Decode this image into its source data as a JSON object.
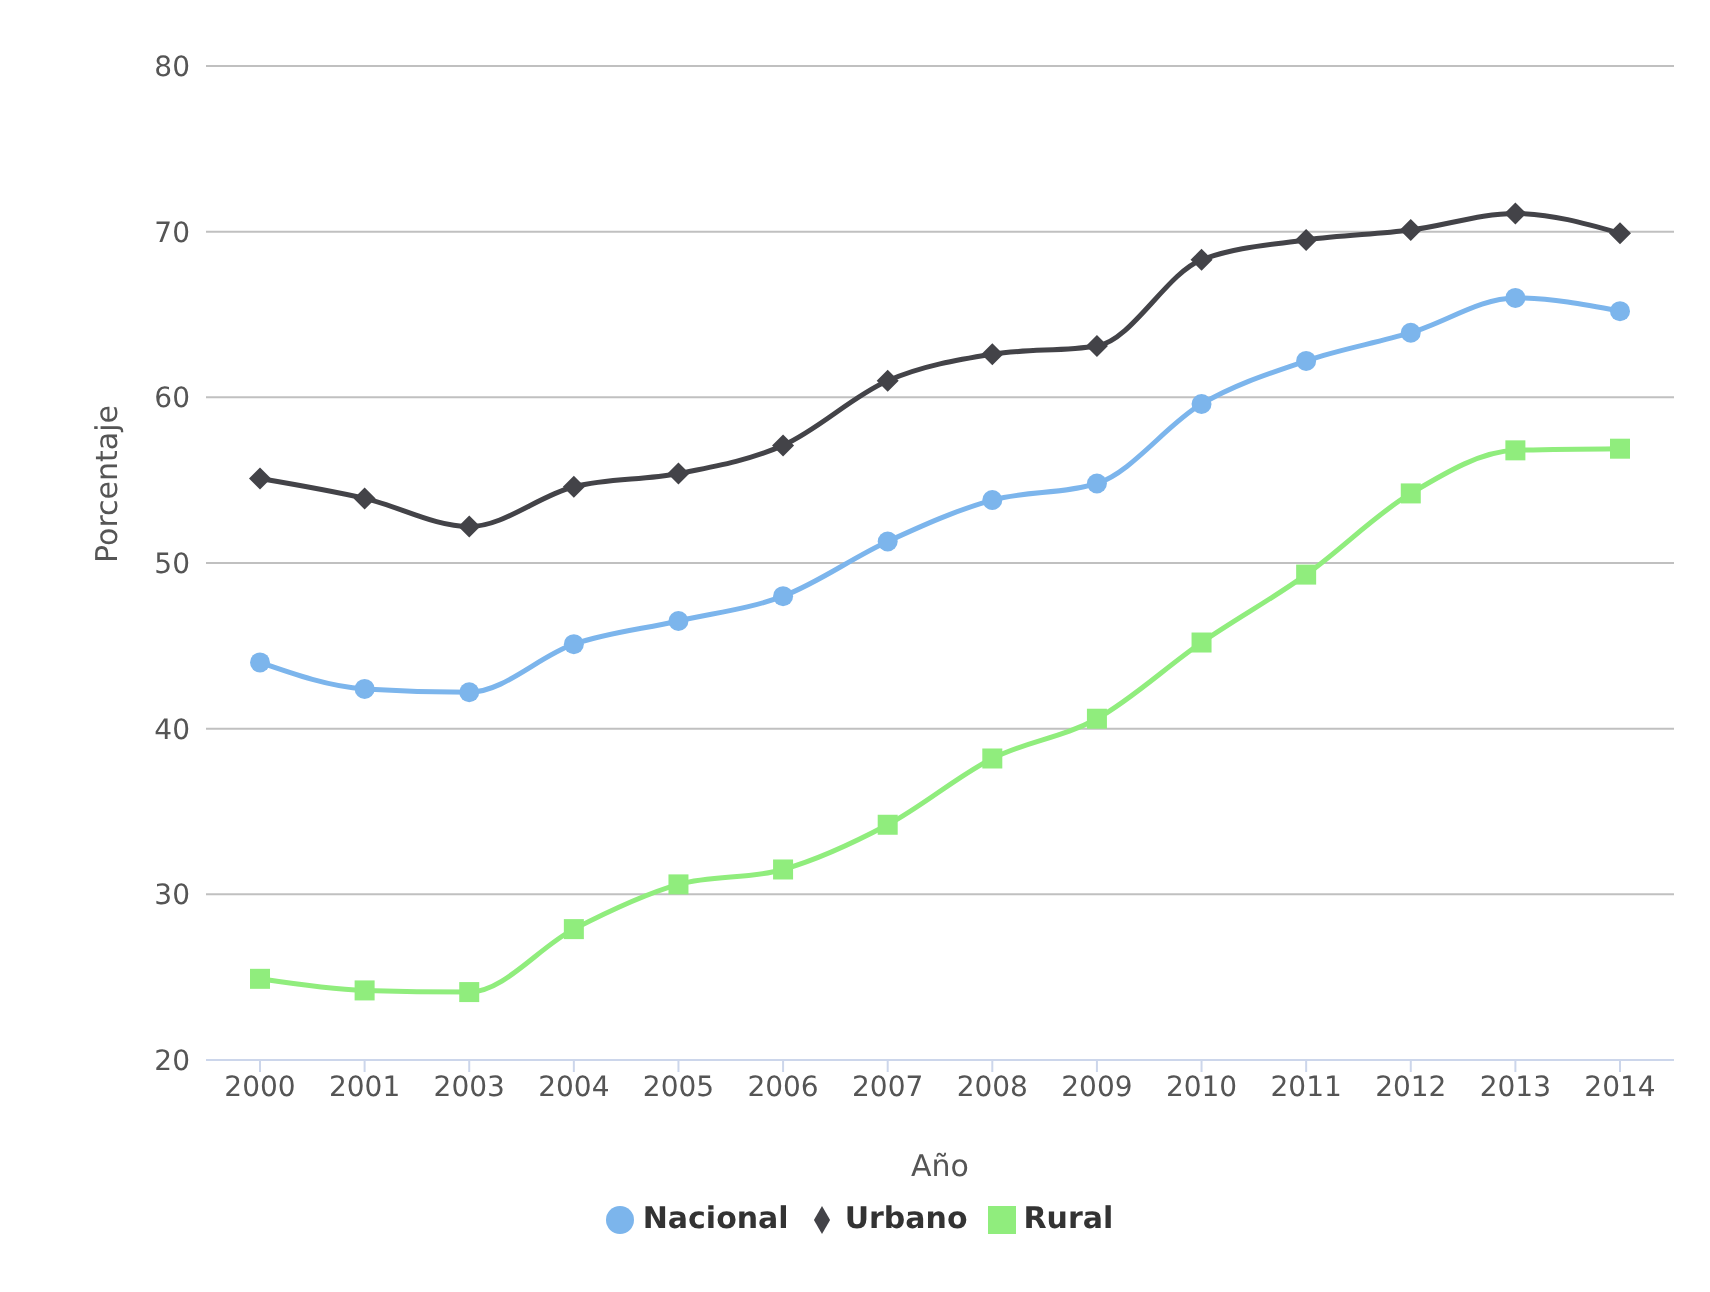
{
  "chart_data": {
    "type": "line",
    "xlabel": "Año",
    "ylabel": "Porcentaje",
    "categories": [
      "2000",
      "2001",
      "2003",
      "2004",
      "2005",
      "2006",
      "2007",
      "2008",
      "2009",
      "2010",
      "2011",
      "2012",
      "2013",
      "2014"
    ],
    "series": [
      {
        "name": "Nacional",
        "color": "#7cb5ec",
        "marker": "circle",
        "values": [
          44.0,
          42.4,
          42.2,
          45.1,
          46.5,
          48.0,
          51.3,
          53.8,
          54.8,
          59.6,
          62.2,
          63.9,
          66.0,
          65.2
        ]
      },
      {
        "name": "Urbano",
        "color": "#434348",
        "marker": "diamond",
        "values": [
          55.1,
          53.9,
          52.2,
          54.6,
          55.4,
          57.1,
          61.0,
          62.6,
          63.1,
          68.3,
          69.5,
          70.1,
          71.1,
          69.9
        ]
      },
      {
        "name": "Rural",
        "color": "#90ed7d",
        "marker": "square",
        "values": [
          24.9,
          24.2,
          24.1,
          27.9,
          30.6,
          31.5,
          34.2,
          38.2,
          40.6,
          45.2,
          49.3,
          54.2,
          56.8,
          56.9
        ]
      }
    ],
    "ylim": [
      20,
      80
    ],
    "yticks": [
      20,
      30,
      40,
      50,
      60,
      70,
      80
    ],
    "grid": "y",
    "legend": "bottom",
    "line_style": "solid"
  }
}
